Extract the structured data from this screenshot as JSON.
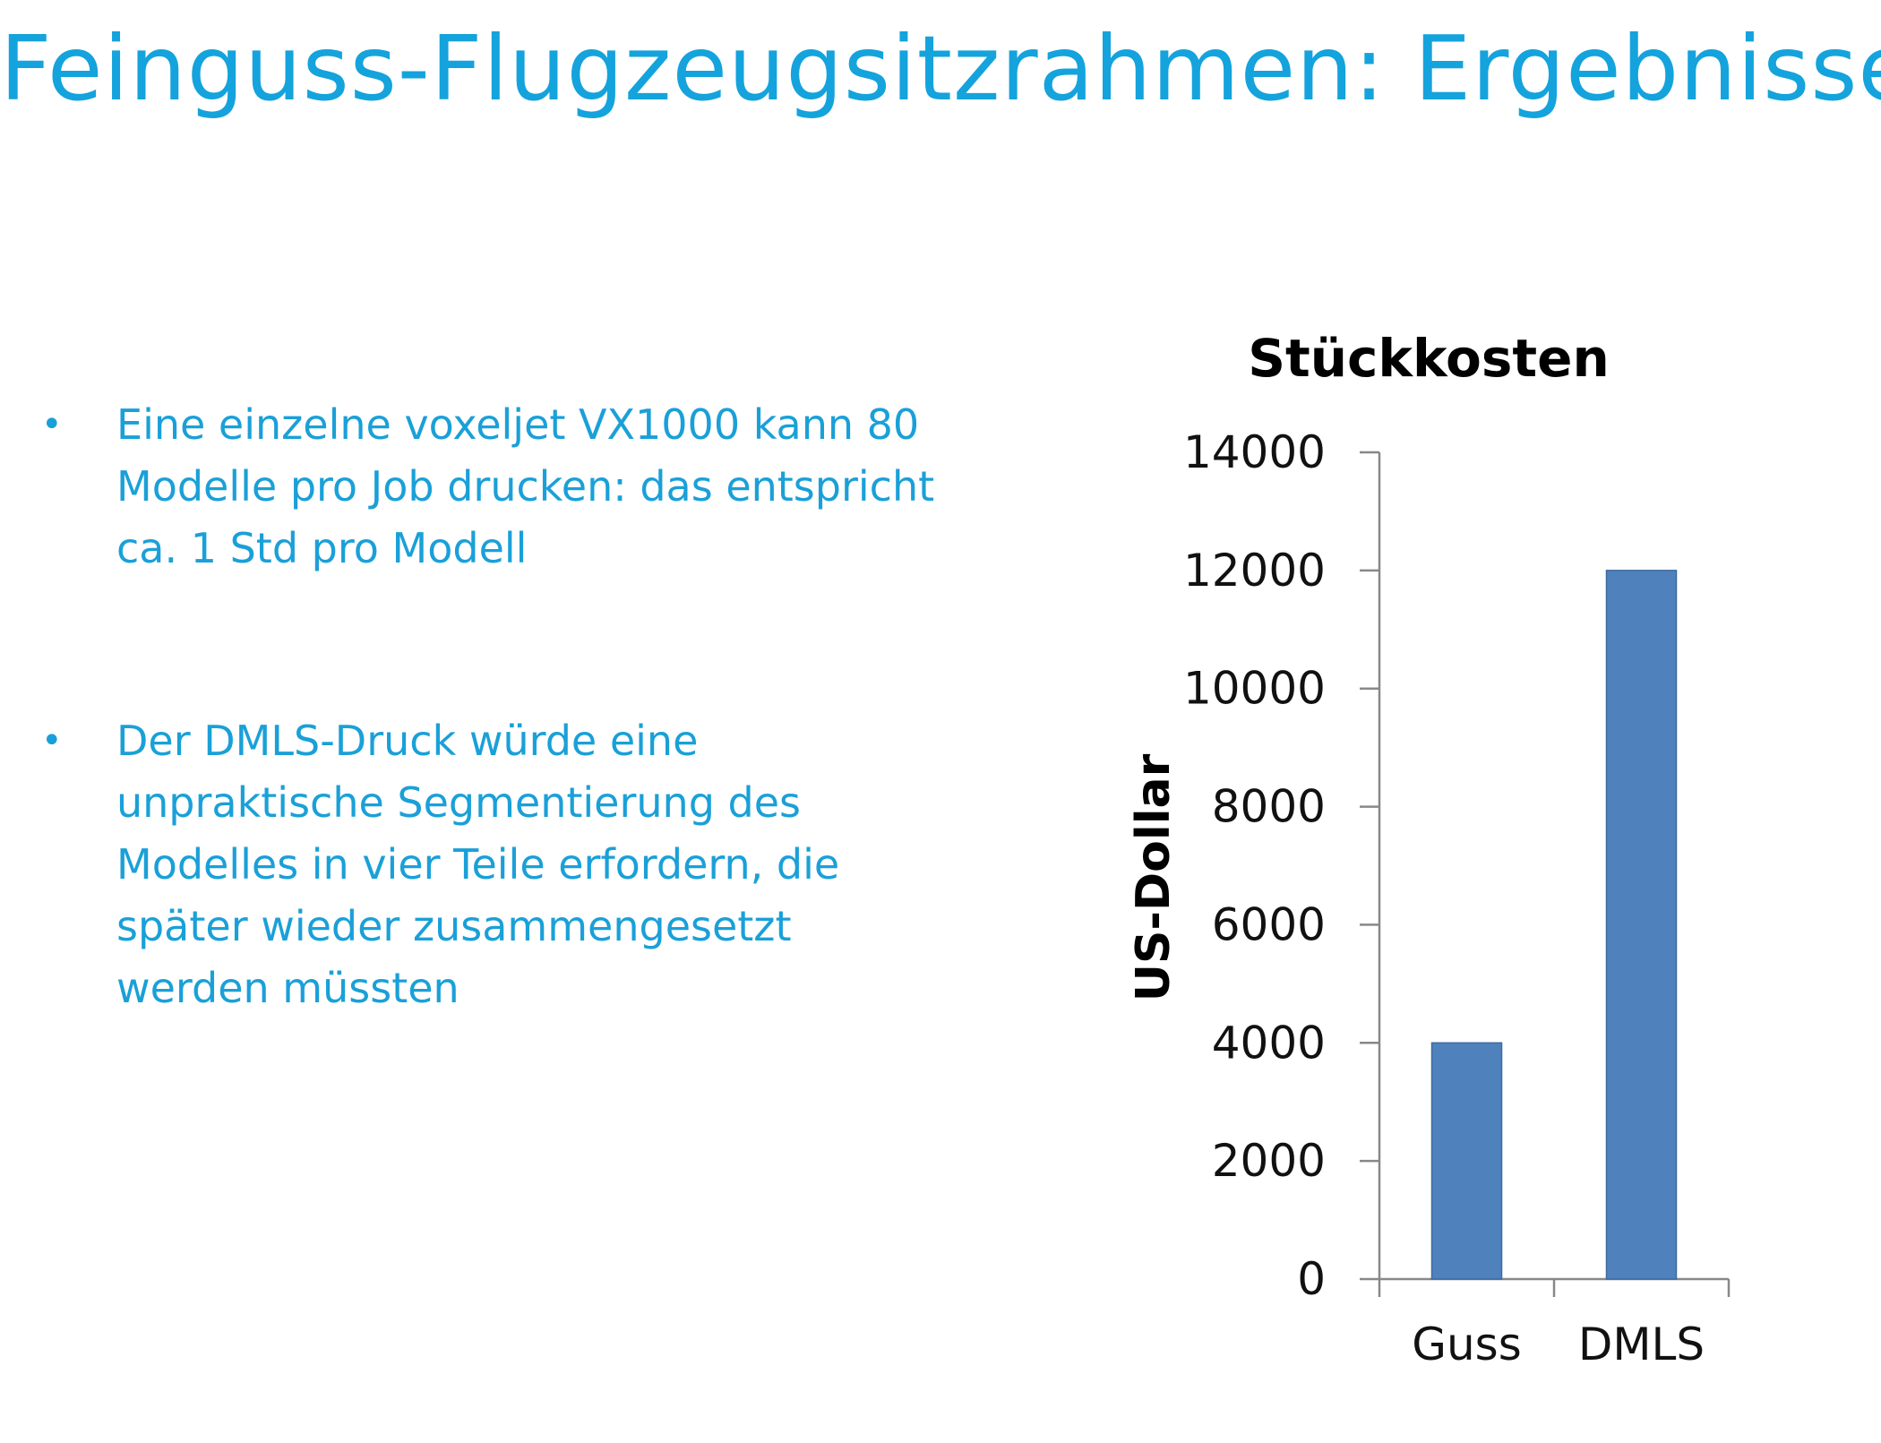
{
  "slide": {
    "title": "Feinguss-Flugzeugsitzrahmen: Ergebnisse",
    "bullet_marker": "•",
    "bullets": [
      "Eine einzelne voxeljet VX1000 kann 80 Modelle pro Job drucken: das entspricht ca.  1 Std pro Modell",
      "Der DMLS-Druck würde eine unpraktische Segmentierung des Modelles in vier Teile erfordern, die später wieder zusammengesetzt werden müssten"
    ]
  },
  "colors": {
    "title": "#14a3dc",
    "text": "#1aa0d8",
    "bar": "#4f81bd"
  },
  "chart_data": {
    "type": "bar",
    "title": "Stückkosten",
    "xlabel": "",
    "ylabel": "US-Dollar",
    "categories": [
      "Guss",
      "DMLS"
    ],
    "values": [
      4000,
      12000
    ],
    "ylim": [
      0,
      14000
    ],
    "yticks": [
      0,
      2000,
      4000,
      6000,
      8000,
      10000,
      12000,
      14000
    ],
    "grid": false,
    "legend": "none"
  }
}
